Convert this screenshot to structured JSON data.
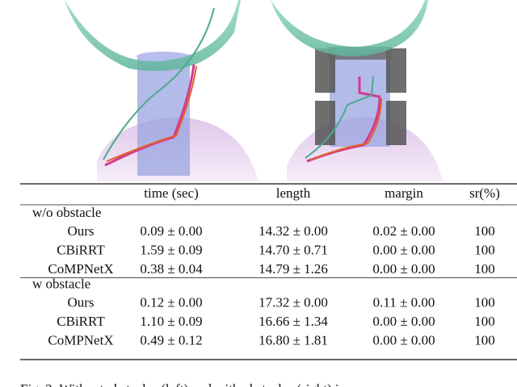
{
  "table": {
    "header": [
      "time (sec)",
      "length",
      "margin",
      "sr(%)"
    ],
    "groups": [
      {
        "label": "w/o obstacle",
        "rows": [
          [
            "Ours",
            "0.09 ± 0.00",
            "14.32 ± 0.00",
            "0.02 ± 0.00",
            100
          ],
          [
            "CBiRRT",
            "1.59 ± 0.09",
            "14.70 ± 0.71",
            "0.00 ± 0.00",
            100
          ],
          [
            "CoMPNetX",
            "0.38 ± 0.04",
            "14.79 ± 1.26",
            "0.00 ± 0.00",
            100
          ]
        ]
      },
      {
        "label": "w obstacle",
        "rows": [
          [
            "Ours",
            "0.12 ± 0.00",
            "17.32 ± 0.00",
            "0.11 ± 0.00",
            100
          ],
          [
            "CBiRRT",
            "1.10 ± 0.09",
            "16.66 ± 1.34",
            "0.00 ± 0.00",
            100
          ],
          [
            "CoMPNetX",
            "0.49 ± 0.12",
            "16.80 ± 1.81",
            "0.00 ± 0.00",
            100
          ]
        ]
      }
    ]
  },
  "caption": "Fig. 2: Without obstacles (left) and with obstacles (right) i"
}
